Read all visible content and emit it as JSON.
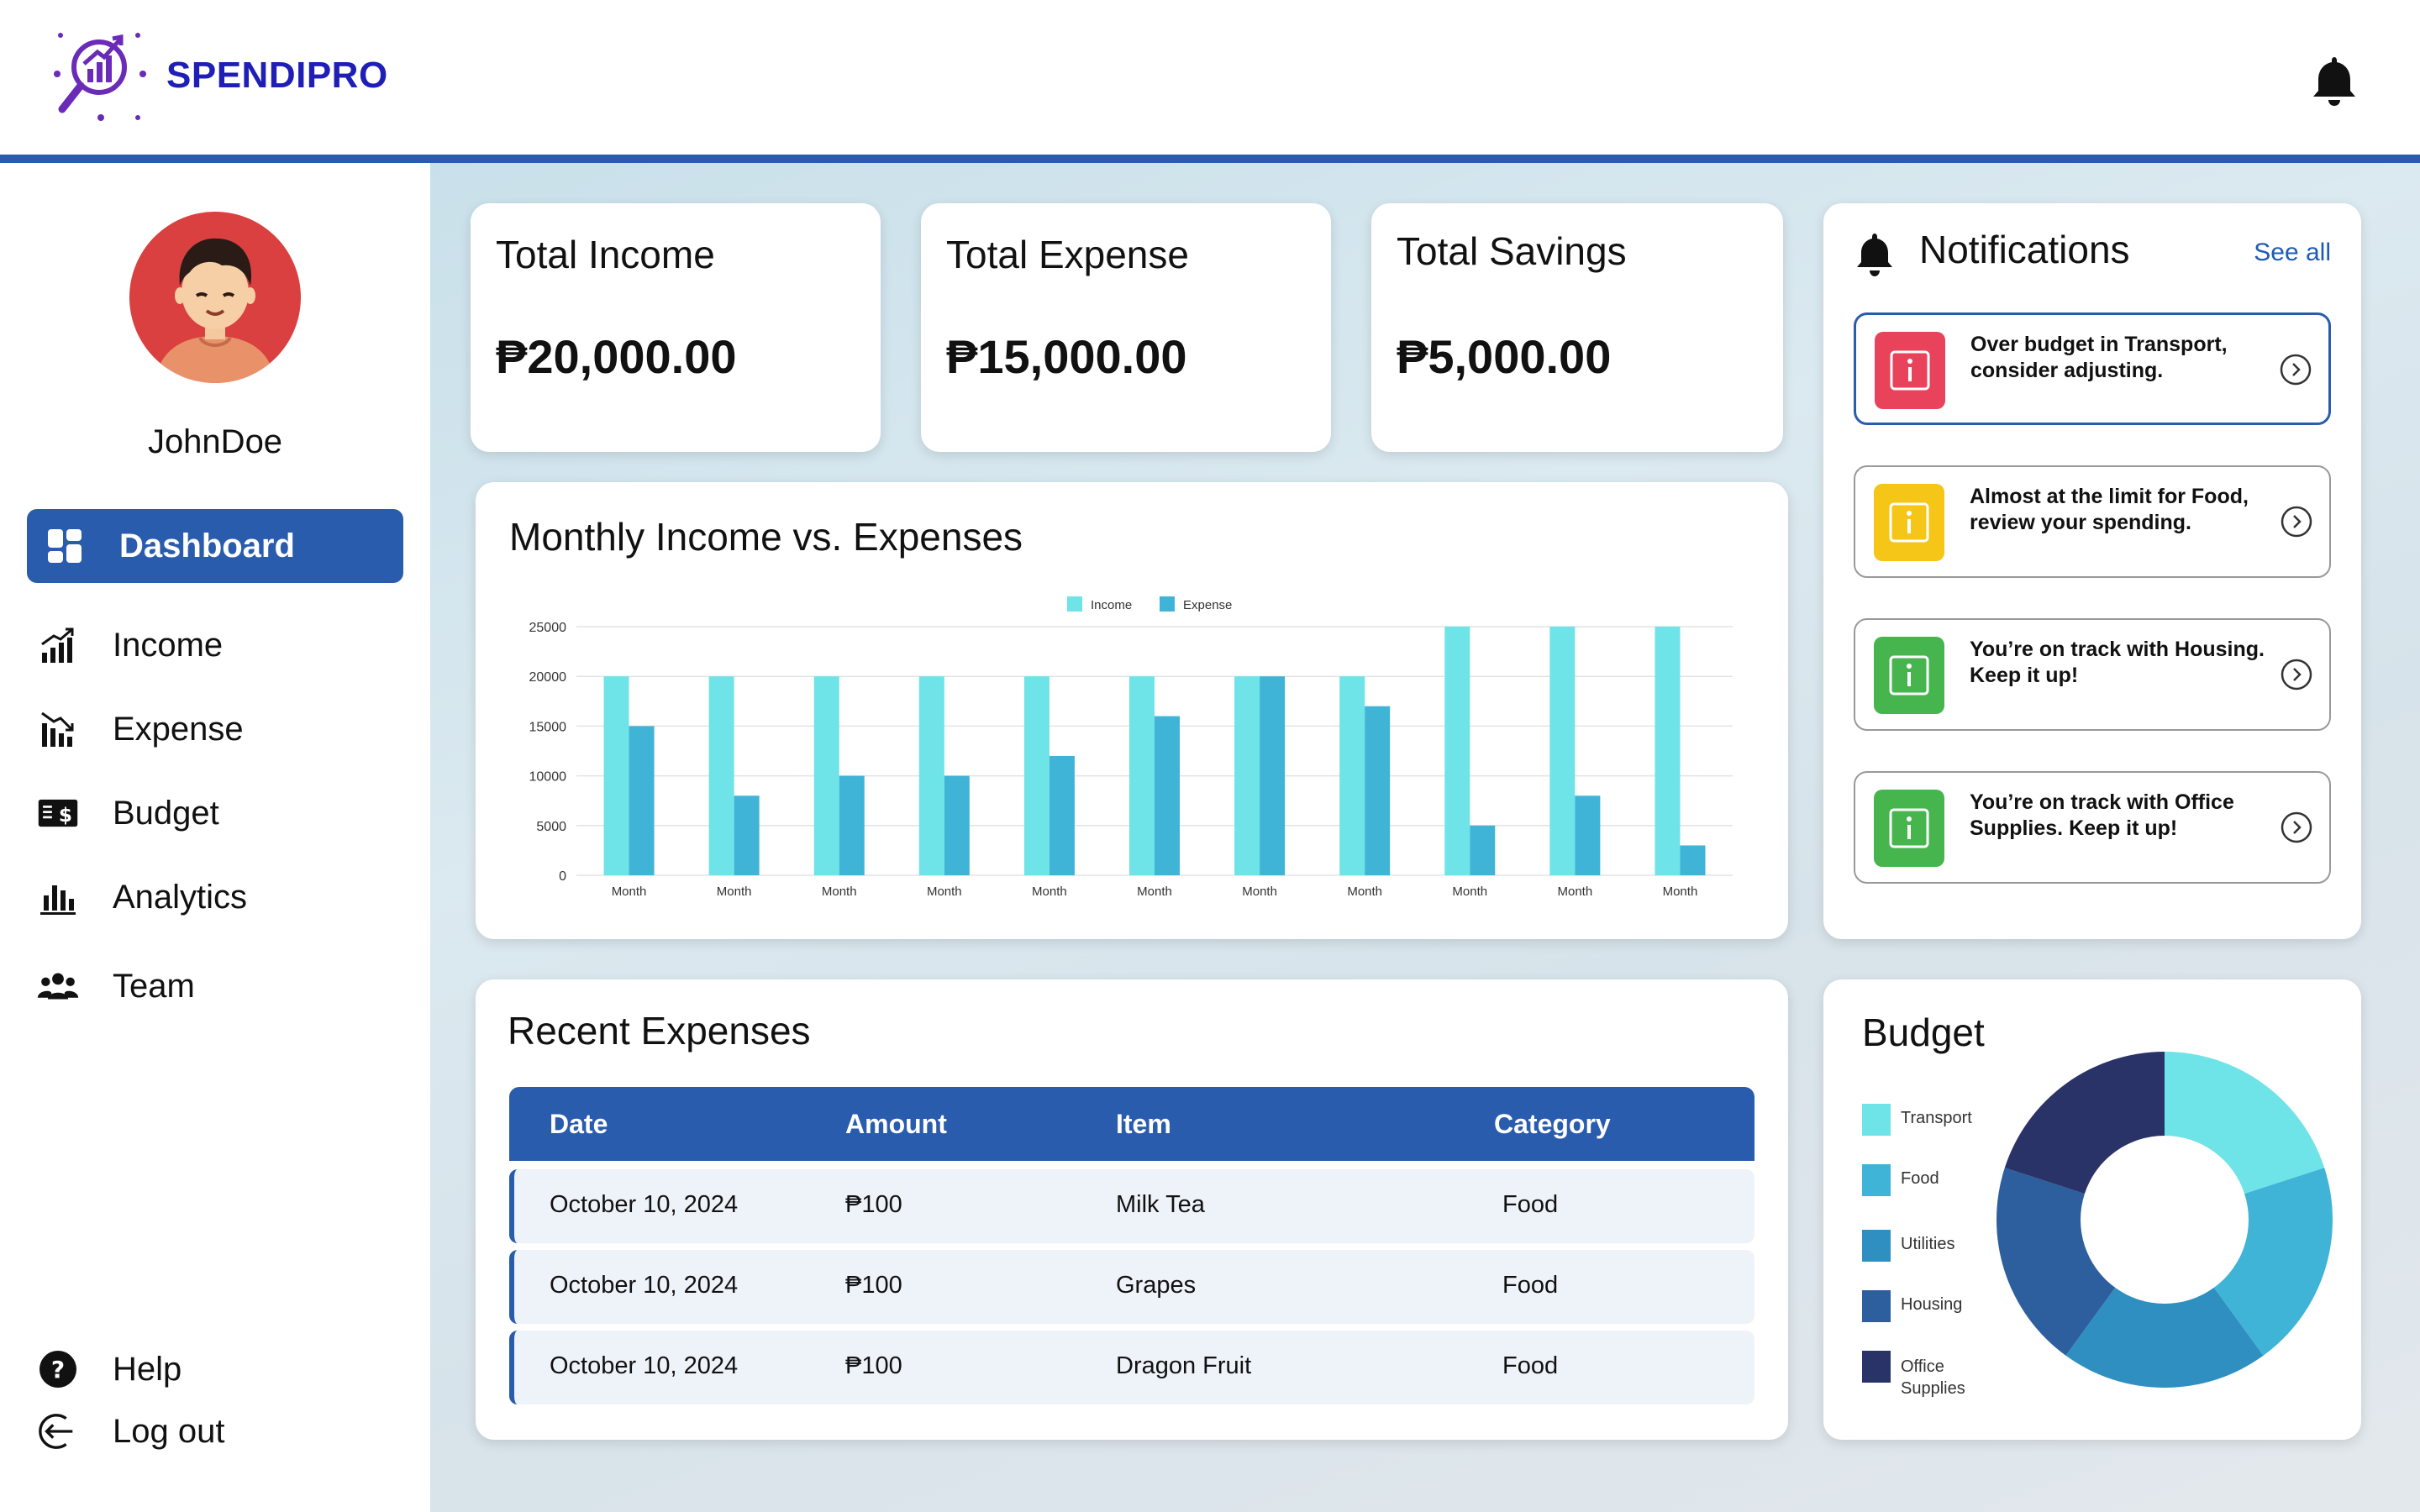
{
  "app": {
    "name": "SPENDIPRO"
  },
  "user": {
    "name": "JohnDoe"
  },
  "nav": {
    "items": [
      {
        "label": "Dashboard",
        "icon": "dashboard-icon",
        "active": true
      },
      {
        "label": "Income",
        "icon": "income-icon"
      },
      {
        "label": "Expense",
        "icon": "expense-icon"
      },
      {
        "label": "Budget",
        "icon": "budget-icon"
      },
      {
        "label": "Analytics",
        "icon": "analytics-icon"
      },
      {
        "label": "Team",
        "icon": "team-icon"
      }
    ],
    "help": "Help",
    "logout": "Log out"
  },
  "stats": {
    "income": {
      "title": "Total Income",
      "value": "₱20,000.00"
    },
    "expense": {
      "title": "Total Expense",
      "value": "₱15,000.00"
    },
    "savings": {
      "title": "Total Savings",
      "value": "₱5,000.00"
    }
  },
  "monthly_chart": {
    "title": "Monthly Income vs. Expenses",
    "legend": [
      "Income",
      "Expense"
    ]
  },
  "notifications": {
    "title": "Notifications",
    "see_all": "See all",
    "items": [
      {
        "text": "Over budget in Transport, consider adjusting.",
        "color": "#e8435a"
      },
      {
        "text": "Almost at the limit for Food, review your spending.",
        "color": "#f5c518"
      },
      {
        "text": "You’re on track with Housing. Keep it up!",
        "color": "#46b54e"
      },
      {
        "text": "You’re on track with Office Supplies. Keep it up!",
        "color": "#46b54e"
      }
    ]
  },
  "recent_expenses": {
    "title": "Recent Expenses",
    "columns": [
      "Date",
      "Amount",
      "Item",
      "Category"
    ],
    "rows": [
      {
        "date": "October 10, 2024",
        "amount": "₱100",
        "item": "Milk Tea",
        "category": "Food"
      },
      {
        "date": "October 10, 2024",
        "amount": "₱100",
        "item": "Grapes",
        "category": "Food"
      },
      {
        "date": "October 10, 2024",
        "amount": "₱100",
        "item": "Dragon Fruit",
        "category": "Food"
      }
    ]
  },
  "budget": {
    "title": "Budget",
    "legend": [
      "Transport",
      "Food",
      "Utilities",
      "Housing",
      "Office Supplies"
    ]
  },
  "chart_data": [
    {
      "type": "bar",
      "title": "Monthly Income vs. Expenses",
      "categories": [
        "Month",
        "Month",
        "Month",
        "Month",
        "Month",
        "Month",
        "Month",
        "Month",
        "Month",
        "Month",
        "Month"
      ],
      "series": [
        {
          "name": "Income",
          "values": [
            20000,
            20000,
            20000,
            20000,
            20000,
            20000,
            20000,
            20000,
            25000,
            25000,
            25000
          ],
          "color": "#6ee3e8"
        },
        {
          "name": "Expense",
          "values": [
            15000,
            8000,
            10000,
            10000,
            12000,
            16000,
            20000,
            17000,
            5000,
            8000,
            3000
          ],
          "color": "#3fb4d6"
        }
      ],
      "ylim": [
        0,
        25000
      ],
      "yticks": [
        0,
        5000,
        10000,
        15000,
        20000,
        25000
      ],
      "grid": true,
      "legend": "top"
    },
    {
      "type": "pie",
      "title": "Budget",
      "donut": true,
      "labels": [
        "Transport",
        "Food",
        "Utilities",
        "Housing",
        "Office Supplies"
      ],
      "values": [
        20,
        20,
        20,
        20,
        20
      ],
      "colors": [
        "#6ee3e8",
        "#3fb4d6",
        "#2f8fc0",
        "#2d5f9e",
        "#2a3368"
      ],
      "legend": "left"
    }
  ]
}
